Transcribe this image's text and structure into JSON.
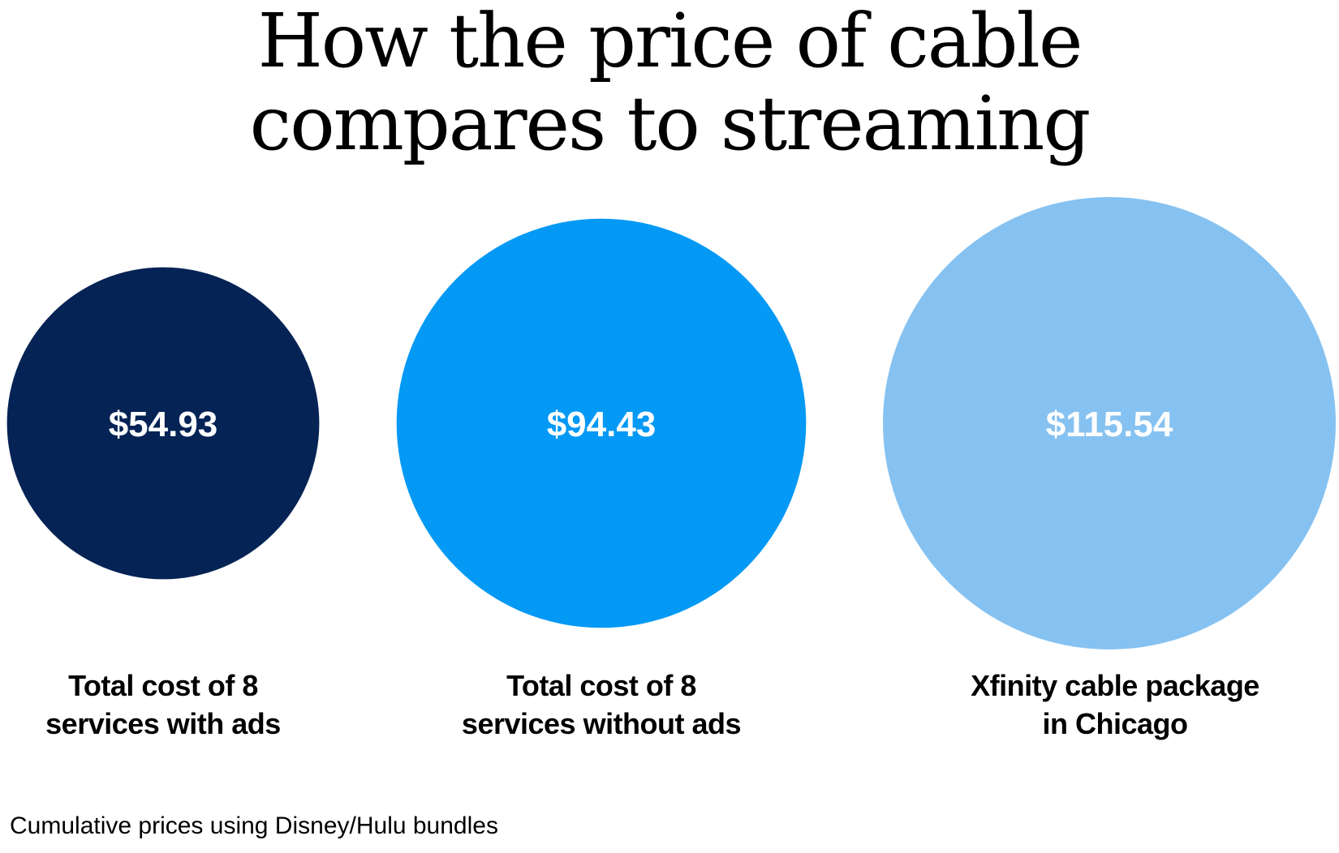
{
  "title_lines": [
    "How the price of cable",
    "compares to streaming"
  ],
  "chart_data": {
    "type": "bubble",
    "title": "How the price of cable compares to streaming",
    "categories": [
      "Total cost of 8 services with ads",
      "Total cost of 8 services without ads",
      "Xfinity cable package in Chicago"
    ],
    "values": [
      54.93,
      94.43,
      115.54
    ],
    "value_labels": [
      "$54.93",
      "$94.43",
      "$115.54"
    ],
    "label_lines": [
      [
        "Total cost of 8",
        "services with ads"
      ],
      [
        "Total cost of 8",
        "services without ads"
      ],
      [
        "Xfinity cable package",
        "in Chicago"
      ]
    ],
    "colors": [
      "#052355",
      "#0399f5",
      "#86c2f1"
    ],
    "encoding": "circle area proportional to value"
  },
  "footnote": "Cumulative prices using Disney/Hulu bundles"
}
